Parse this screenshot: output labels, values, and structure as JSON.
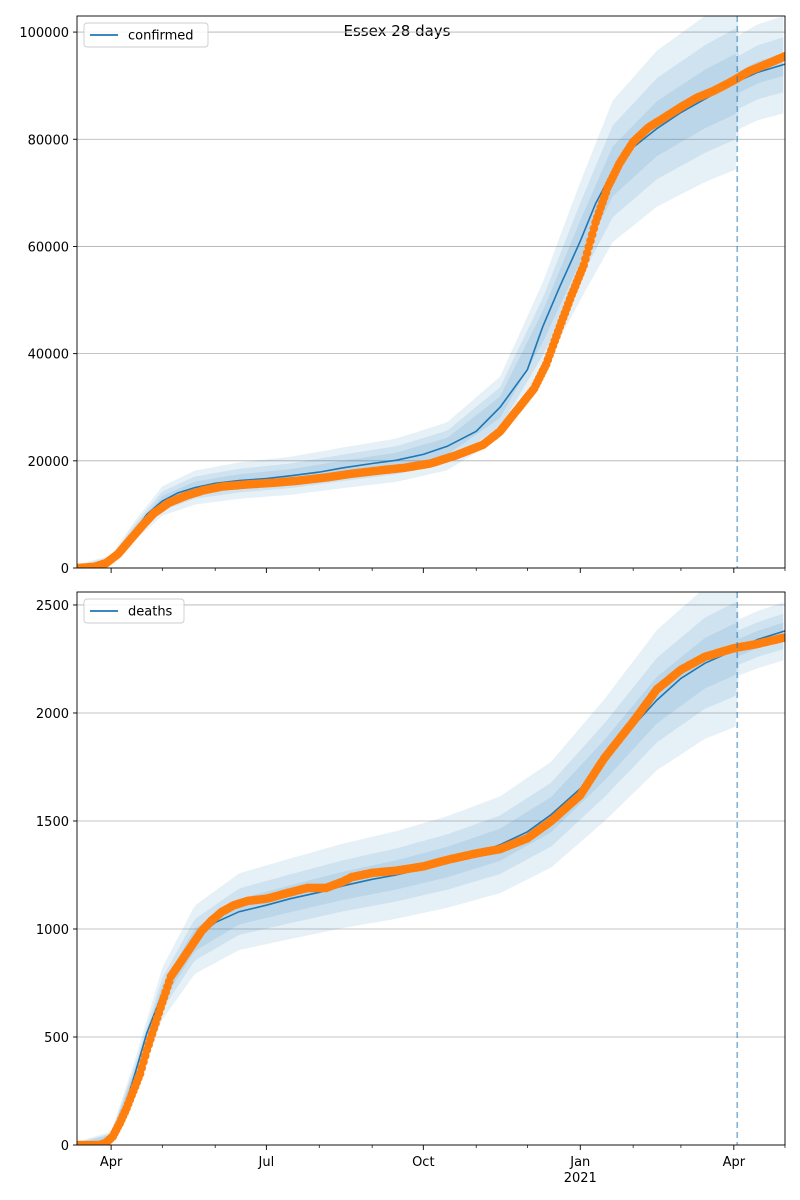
{
  "title": "Essex 28 days",
  "colors": {
    "model": "#1f77b4",
    "observed": "#ff7f0e",
    "grid": "#b0b0b0",
    "band": "#1f77b4"
  },
  "x_axis": {
    "start": "2020-03-12",
    "end": "2021-05-01",
    "major_ticks": [
      {
        "date": "2020-04-01",
        "label": "Apr",
        "sublabel": ""
      },
      {
        "date": "2020-07-01",
        "label": "Jul",
        "sublabel": ""
      },
      {
        "date": "2020-10-01",
        "label": "Oct",
        "sublabel": ""
      },
      {
        "date": "2021-01-01",
        "label": "Jan",
        "sublabel": "2021"
      },
      {
        "date": "2021-04-01",
        "label": "Apr",
        "sublabel": ""
      }
    ],
    "minor_tick_dates": [
      "2020-05-01",
      "2020-06-01",
      "2020-08-01",
      "2020-09-01",
      "2020-11-01",
      "2020-12-01",
      "2021-02-01",
      "2021-03-01",
      "2021-05-01"
    ],
    "forecast_date": "2021-04-03"
  },
  "chart_data": [
    {
      "type": "line",
      "panel": "top",
      "legend_label": "confirmed",
      "legend_position": "top-left",
      "grid": "horizontal",
      "ylim": [
        0,
        103000
      ],
      "yticks": [
        0,
        20000,
        40000,
        60000,
        80000,
        100000
      ],
      "model": {
        "x": [
          "2020-03-12",
          "2020-03-25",
          "2020-04-01",
          "2020-04-08",
          "2020-04-15",
          "2020-04-22",
          "2020-05-01",
          "2020-05-10",
          "2020-05-20",
          "2020-06-01",
          "2020-06-15",
          "2020-07-01",
          "2020-07-15",
          "2020-08-01",
          "2020-08-15",
          "2020-09-01",
          "2020-09-15",
          "2020-10-01",
          "2020-10-15",
          "2020-11-01",
          "2020-11-15",
          "2020-12-01",
          "2020-12-10",
          "2020-12-20",
          "2021-01-01",
          "2021-01-10",
          "2021-01-20",
          "2021-02-01",
          "2021-02-15",
          "2021-03-01",
          "2021-03-15",
          "2021-04-01",
          "2021-04-15",
          "2021-05-01"
        ],
        "y": [
          0,
          300,
          1500,
          3500,
          7000,
          10000,
          12500,
          14000,
          15000,
          15800,
          16300,
          16700,
          17200,
          17900,
          18700,
          19500,
          20100,
          21200,
          22700,
          25500,
          30000,
          37000,
          45000,
          52500,
          61000,
          68000,
          74000,
          78500,
          82000,
          85000,
          87500,
          90500,
          92500,
          94000
        ]
      },
      "bands": {
        "x": [
          "2020-03-12",
          "2020-04-01",
          "2020-04-15",
          "2020-05-01",
          "2020-05-20",
          "2020-06-15",
          "2020-07-15",
          "2020-08-15",
          "2020-09-15",
          "2020-10-15",
          "2020-11-15",
          "2020-12-10",
          "2021-01-01",
          "2021-01-20",
          "2021-02-15",
          "2021-03-15",
          "2021-04-03",
          "2021-04-15",
          "2021-05-01"
        ],
        "center": [
          0,
          1500,
          7000,
          12500,
          15000,
          16300,
          17200,
          18700,
          20100,
          22700,
          30000,
          45000,
          61000,
          74000,
          82000,
          87500,
          90500,
          92500,
          94000
        ],
        "rel_widths": [
          0.06,
          0.11,
          0.17
        ],
        "rel_widths_after_forecast": [
          0.02,
          0.05,
          0.09
        ]
      },
      "observed": {
        "x": [
          "2020-03-12",
          "2020-03-22",
          "2020-03-29",
          "2020-04-05",
          "2020-04-12",
          "2020-04-19",
          "2020-04-26",
          "2020-05-05",
          "2020-05-15",
          "2020-05-25",
          "2020-06-05",
          "2020-06-20",
          "2020-07-05",
          "2020-07-20",
          "2020-08-05",
          "2020-08-20",
          "2020-09-05",
          "2020-09-20",
          "2020-10-05",
          "2020-10-20",
          "2020-11-05",
          "2020-11-15",
          "2020-11-25",
          "2020-12-05",
          "2020-12-12",
          "2020-12-20",
          "2020-12-27",
          "2021-01-03",
          "2021-01-10",
          "2021-01-17",
          "2021-01-24",
          "2021-02-01",
          "2021-02-10",
          "2021-02-20",
          "2021-03-01",
          "2021-03-10",
          "2021-03-20",
          "2021-04-01",
          "2021-04-10",
          "2021-04-20",
          "2021-05-01"
        ],
        "y": [
          0,
          200,
          900,
          2600,
          5200,
          7800,
          10200,
          12200,
          13500,
          14500,
          15200,
          15600,
          15900,
          16300,
          16900,
          17600,
          18200,
          18700,
          19500,
          21000,
          23000,
          25500,
          29500,
          33500,
          38000,
          45000,
          51000,
          56500,
          64500,
          71000,
          75500,
          79500,
          82200,
          84200,
          86000,
          87700,
          89000,
          91000,
          92700,
          94000,
          95500
        ]
      }
    },
    {
      "type": "line",
      "panel": "bottom",
      "legend_label": "deaths",
      "legend_position": "top-left",
      "grid": "horizontal",
      "ylim": [
        0,
        2560
      ],
      "yticks": [
        0,
        500,
        1000,
        1500,
        2000,
        2500
      ],
      "model": {
        "x": [
          "2020-03-12",
          "2020-03-25",
          "2020-04-01",
          "2020-04-08",
          "2020-04-15",
          "2020-04-22",
          "2020-05-01",
          "2020-05-10",
          "2020-05-20",
          "2020-06-01",
          "2020-06-15",
          "2020-07-01",
          "2020-07-15",
          "2020-08-01",
          "2020-08-15",
          "2020-09-01",
          "2020-09-15",
          "2020-10-01",
          "2020-10-15",
          "2020-11-01",
          "2020-11-15",
          "2020-12-01",
          "2020-12-15",
          "2021-01-01",
          "2021-01-15",
          "2021-02-01",
          "2021-02-15",
          "2021-03-01",
          "2021-03-15",
          "2021-04-01",
          "2021-04-15",
          "2021-05-01"
        ],
        "y": [
          0,
          0,
          40,
          150,
          330,
          520,
          700,
          840,
          950,
          1030,
          1080,
          1110,
          1140,
          1170,
          1200,
          1230,
          1250,
          1280,
          1310,
          1350,
          1390,
          1450,
          1530,
          1650,
          1780,
          1940,
          2060,
          2160,
          2230,
          2290,
          2340,
          2380
        ]
      },
      "bands": {
        "x": [
          "2020-03-12",
          "2020-04-01",
          "2020-04-15",
          "2020-05-01",
          "2020-05-20",
          "2020-06-15",
          "2020-07-15",
          "2020-08-15",
          "2020-09-15",
          "2020-10-15",
          "2020-11-15",
          "2020-12-15",
          "2021-01-15",
          "2021-02-15",
          "2021-03-15",
          "2021-04-03",
          "2021-04-15",
          "2021-05-01"
        ],
        "center": [
          0,
          40,
          330,
          700,
          950,
          1080,
          1140,
          1200,
          1250,
          1310,
          1390,
          1530,
          1780,
          2060,
          2230,
          2300,
          2340,
          2380
        ],
        "rel_widths": [
          0.05,
          0.09,
          0.15
        ],
        "rel_widths_after_forecast": [
          0.015,
          0.03,
          0.05
        ]
      },
      "observed": {
        "x": [
          "2020-03-12",
          "2020-03-25",
          "2020-03-29",
          "2020-04-02",
          "2020-04-06",
          "2020-04-10",
          "2020-04-14",
          "2020-04-18",
          "2020-04-22",
          "2020-04-26",
          "2020-05-01",
          "2020-05-06",
          "2020-05-12",
          "2020-05-18",
          "2020-05-24",
          "2020-05-30",
          "2020-06-05",
          "2020-06-12",
          "2020-06-20",
          "2020-07-01",
          "2020-07-15",
          "2020-07-25",
          "2020-08-05",
          "2020-08-15",
          "2020-08-20",
          "2020-09-01",
          "2020-09-15",
          "2020-10-01",
          "2020-10-15",
          "2020-11-01",
          "2020-11-15",
          "2020-12-01",
          "2020-12-15",
          "2021-01-01",
          "2021-01-15",
          "2021-02-01",
          "2021-02-15",
          "2021-03-01",
          "2021-03-15",
          "2021-04-01",
          "2021-04-15",
          "2021-05-01"
        ],
        "y": [
          0,
          0,
          10,
          40,
          100,
          170,
          250,
          330,
          440,
          540,
          660,
          780,
          850,
          920,
          990,
          1040,
          1080,
          1110,
          1130,
          1140,
          1170,
          1190,
          1190,
          1220,
          1240,
          1260,
          1270,
          1290,
          1320,
          1350,
          1370,
          1420,
          1500,
          1620,
          1790,
          1960,
          2110,
          2200,
          2260,
          2300,
          2320,
          2350
        ]
      }
    }
  ]
}
